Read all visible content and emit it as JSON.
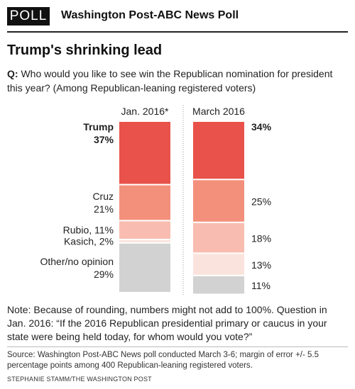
{
  "header": {
    "badge": "POLL",
    "title": "Washington Post-ABC News Poll"
  },
  "headline": "Trump's shrinking lead",
  "question": {
    "prefix": "Q:",
    "text": "Who would you like to see win the Republican nomination for president this year? (Among Republican-leaning registered voters)"
  },
  "chart_data": {
    "type": "bar",
    "stacked": true,
    "orientation": "vertical",
    "ylim": [
      0,
      100
    ],
    "categories": [
      "Jan. 2016*",
      "March 2016"
    ],
    "series": [
      {
        "name": "Trump",
        "values": [
          37,
          34
        ],
        "color": "#e8524a",
        "jan_label": [
          "Trump",
          "37%"
        ],
        "mar_label": "34%",
        "bold": true
      },
      {
        "name": "Cruz",
        "values": [
          21,
          25
        ],
        "color": "#f3907c",
        "jan_label": [
          "Cruz",
          "21%"
        ],
        "mar_label": "25%"
      },
      {
        "name": "Rubio",
        "values": [
          11,
          18
        ],
        "color": "#f8bdb0",
        "jan_label": [
          "Rubio, 11%"
        ],
        "mar_label": "18%"
      },
      {
        "name": "Kasich",
        "values": [
          2,
          13
        ],
        "color": "#fbe3dd",
        "jan_label": [
          "Kasich, 2%"
        ],
        "mar_label": "13%"
      },
      {
        "name": "Other/no opinion",
        "values": [
          29,
          11
        ],
        "color": "#d2d2d2",
        "jan_label": [
          "Other/no opinion",
          "29%"
        ],
        "mar_label": "11%"
      }
    ]
  },
  "note": "Note: Because of rounding, numbers might not add to 100%. Question in Jan. 2016: “If the 2016 Republican presidential primary or caucus in your state were being held today, for whom would you vote?”",
  "source": "Source: Washington Post-ABC News poll conducted March 3-6; margin of error +/- 5.5 percentage points among 400 Republican-leaning registered voters.",
  "credit": "STEPHANIE STAMM/THE WASHINGTON POST"
}
